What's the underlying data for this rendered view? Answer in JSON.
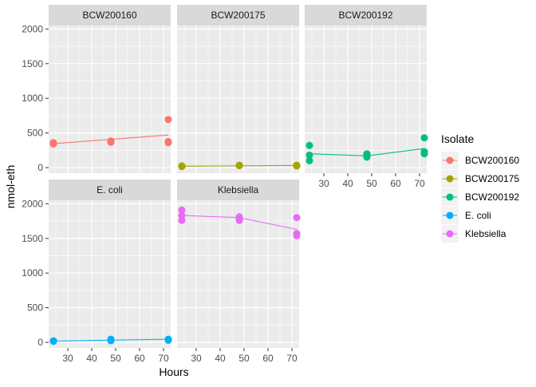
{
  "chart_data": {
    "type": "scatter",
    "xlabel": "Hours",
    "ylabel": "nmol-eth",
    "xlim": [
      22,
      73
    ],
    "ylim": [
      -80,
      2050
    ],
    "x_ticks": [
      30,
      40,
      50,
      60,
      70
    ],
    "y_ticks": [
      0,
      500,
      1000,
      1500,
      2000
    ],
    "grid": true,
    "legend": {
      "title": "Isolate",
      "placement": "right",
      "entries": [
        "BCW200160",
        "BCW200175",
        "BCW200192",
        "E. coli",
        "Klebsiella"
      ]
    },
    "series": [
      {
        "name": "BCW200160",
        "color": "#F8766D",
        "points": [
          {
            "x": 24,
            "y": 340
          },
          {
            "x": 24,
            "y": 355
          },
          {
            "x": 24,
            "y": 360
          },
          {
            "x": 48,
            "y": 365
          },
          {
            "x": 48,
            "y": 380
          },
          {
            "x": 48,
            "y": 385
          },
          {
            "x": 72,
            "y": 360
          },
          {
            "x": 72,
            "y": 375
          },
          {
            "x": 72,
            "y": 695
          }
        ],
        "trend": [
          {
            "x": 24,
            "y": 345
          },
          {
            "x": 72,
            "y": 470
          }
        ]
      },
      {
        "name": "BCW200175",
        "color": "#A3A500",
        "points": [
          {
            "x": 24,
            "y": 15
          },
          {
            "x": 24,
            "y": 20
          },
          {
            "x": 24,
            "y": 25
          },
          {
            "x": 48,
            "y": 28
          },
          {
            "x": 48,
            "y": 32
          },
          {
            "x": 48,
            "y": 35
          },
          {
            "x": 72,
            "y": 25
          },
          {
            "x": 72,
            "y": 30
          },
          {
            "x": 72,
            "y": 35
          }
        ],
        "trend": [
          {
            "x": 24,
            "y": 20
          },
          {
            "x": 72,
            "y": 32
          }
        ]
      },
      {
        "name": "BCW200192",
        "color": "#00BF7D",
        "points": [
          {
            "x": 24,
            "y": 100
          },
          {
            "x": 24,
            "y": 180
          },
          {
            "x": 24,
            "y": 320
          },
          {
            "x": 48,
            "y": 150
          },
          {
            "x": 48,
            "y": 175
          },
          {
            "x": 48,
            "y": 200
          },
          {
            "x": 72,
            "y": 200
          },
          {
            "x": 72,
            "y": 230
          },
          {
            "x": 72,
            "y": 430
          }
        ],
        "trend": [
          {
            "x": 24,
            "y": 200
          },
          {
            "x": 48,
            "y": 170
          },
          {
            "x": 72,
            "y": 275
          }
        ]
      },
      {
        "name": "E. coli",
        "color": "#00B0F6",
        "points": [
          {
            "x": 24,
            "y": 15
          },
          {
            "x": 24,
            "y": 20
          },
          {
            "x": 24,
            "y": 22
          },
          {
            "x": 48,
            "y": 25
          },
          {
            "x": 48,
            "y": 35
          },
          {
            "x": 48,
            "y": 45
          },
          {
            "x": 72,
            "y": 30
          },
          {
            "x": 72,
            "y": 40
          },
          {
            "x": 72,
            "y": 45
          }
        ],
        "trend": [
          {
            "x": 24,
            "y": 18
          },
          {
            "x": 72,
            "y": 45
          }
        ]
      },
      {
        "name": "Klebsiella",
        "color": "#E76BF3",
        "points": [
          {
            "x": 24,
            "y": 1760
          },
          {
            "x": 24,
            "y": 1830
          },
          {
            "x": 24,
            "y": 1910
          },
          {
            "x": 48,
            "y": 1760
          },
          {
            "x": 48,
            "y": 1790
          },
          {
            "x": 48,
            "y": 1810
          },
          {
            "x": 72,
            "y": 1540
          },
          {
            "x": 72,
            "y": 1570
          },
          {
            "x": 72,
            "y": 1800
          }
        ],
        "trend": [
          {
            "x": 24,
            "y": 1830
          },
          {
            "x": 48,
            "y": 1800
          },
          {
            "x": 72,
            "y": 1630
          }
        ]
      }
    ],
    "facets": [
      {
        "label": "BCW200160",
        "series_index": 0,
        "row": 0,
        "col": 0
      },
      {
        "label": "BCW200175",
        "series_index": 1,
        "row": 0,
        "col": 1
      },
      {
        "label": "BCW200192",
        "series_index": 2,
        "row": 0,
        "col": 2
      },
      {
        "label": "E. coli",
        "series_index": 3,
        "row": 1,
        "col": 0
      },
      {
        "label": "Klebsiella",
        "series_index": 4,
        "row": 1,
        "col": 1
      }
    ]
  }
}
